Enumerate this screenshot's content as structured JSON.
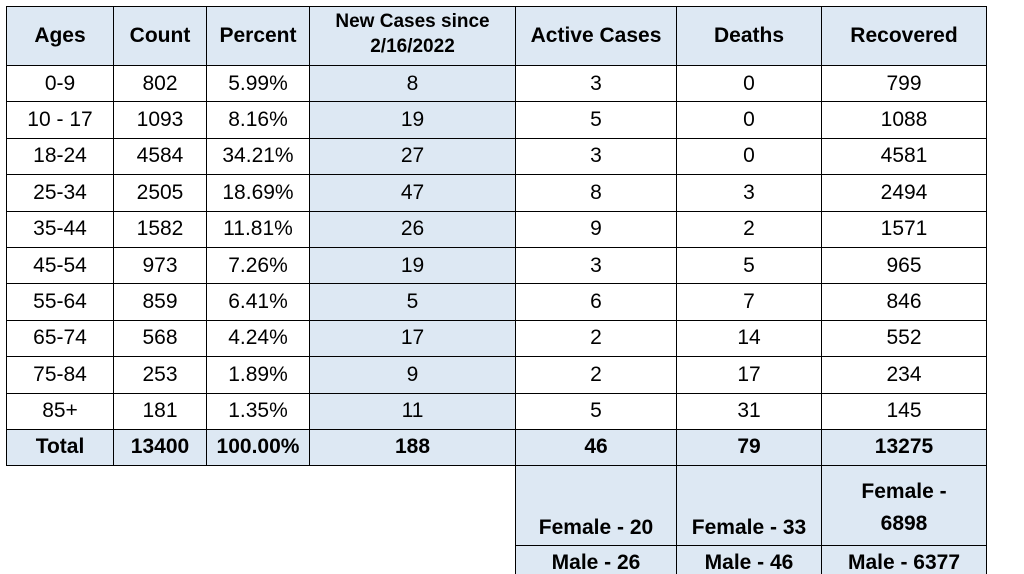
{
  "headers": [
    "Ages",
    "Count",
    "Percent",
    "New Cases since 2/16/2022",
    "Active Cases",
    "Deaths",
    "Recovered"
  ],
  "rows": [
    [
      "0-9",
      "802",
      "5.99%",
      "8",
      "3",
      "0",
      "799"
    ],
    [
      "10 - 17",
      "1093",
      "8.16%",
      "19",
      "5",
      "0",
      "1088"
    ],
    [
      "18-24",
      "4584",
      "34.21%",
      "27",
      "3",
      "0",
      "4581"
    ],
    [
      "25-34",
      "2505",
      "18.69%",
      "47",
      "8",
      "3",
      "2494"
    ],
    [
      "35-44",
      "1582",
      "11.81%",
      "26",
      "9",
      "2",
      "1571"
    ],
    [
      "45-54",
      "973",
      "7.26%",
      "19",
      "3",
      "5",
      "965"
    ],
    [
      "55-64",
      "859",
      "6.41%",
      "5",
      "6",
      "7",
      "846"
    ],
    [
      "65-74",
      "568",
      "4.24%",
      "17",
      "2",
      "14",
      "552"
    ],
    [
      "75-84",
      "253",
      "1.89%",
      "9",
      "2",
      "17",
      "234"
    ],
    [
      "85+",
      "181",
      "1.35%",
      "11",
      "5",
      "31",
      "145"
    ]
  ],
  "total": [
    "Total",
    "13400",
    "100.00%",
    "188",
    "46",
    "79",
    "13275"
  ],
  "female": {
    "active": "Female - 20",
    "deaths": "Female - 33",
    "recovered": "Female - 6898"
  },
  "male": {
    "active": "Male - 26",
    "deaths": "Male - 46",
    "recovered": "Male - 6377"
  },
  "colors": {
    "header_fill": "#dde8f3",
    "border": "#000000"
  }
}
